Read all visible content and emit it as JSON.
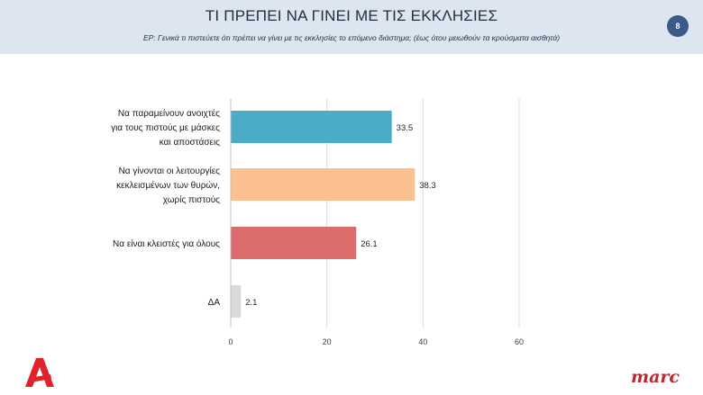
{
  "header": {
    "title": "ΤΙ ΠΡΕΠΕΙ ΝΑ ΓΙΝΕΙ ΜΕ ΤΙΣ ΕΚΚΛΗΣΙΕΣ",
    "subtitle": "ΕΡ: Γενικά τι πιστεύετε ότι πρέπει να γίνει με τις εκκλησίες το επόμενο διάστημα; (έως ότου μειωθούν τα κρούσματα αισθητά)",
    "page_number": "8"
  },
  "logos": {
    "left": "Α",
    "right": "marc"
  },
  "chart_data": {
    "type": "bar",
    "orientation": "horizontal",
    "categories": [
      [
        "Να παραμείνουν ανοιχτές",
        "για τους πιστούς με μάσκες",
        "και αποστάσεις"
      ],
      [
        "Να γίνονται οι λειτουργίες",
        "κεκλεισμένων των θυρών,",
        "χωρίς πιστούς"
      ],
      [
        "Να είναι κλειστές για όλους"
      ],
      [
        "ΔΑ"
      ]
    ],
    "values": [
      33.5,
      38.3,
      26.1,
      2.1
    ],
    "value_labels": [
      "33.5",
      "38.3",
      "26.1",
      "2.1"
    ],
    "colors": [
      "#4bacc6",
      "#fac090",
      "#dc6b6b",
      "#d9d9d9"
    ],
    "xlim": [
      0,
      60
    ],
    "ticks": [
      0,
      20,
      40,
      60
    ],
    "tick_labels": [
      "0",
      "20",
      "40",
      "60"
    ],
    "grid": true,
    "legend": false
  }
}
